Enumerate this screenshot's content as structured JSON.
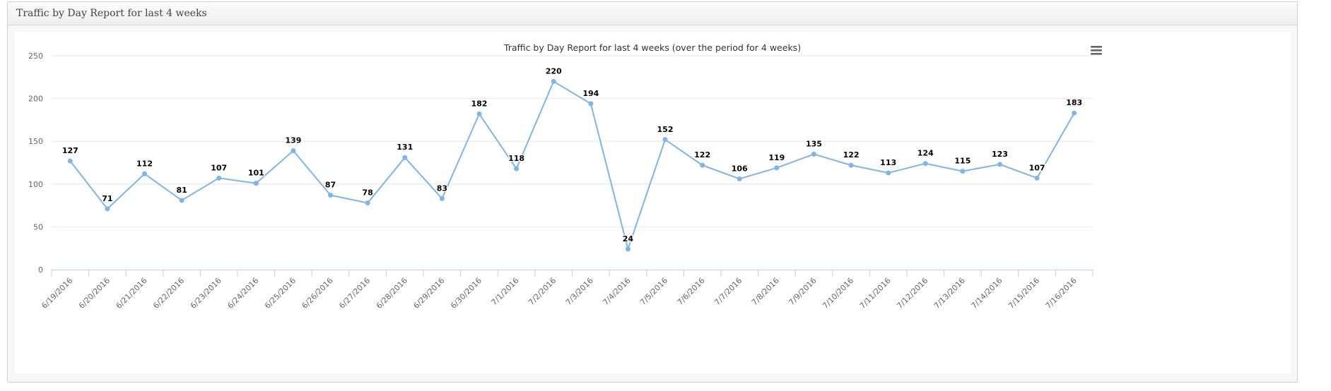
{
  "panel": {
    "title": "Traffic by Day Report for last 4 weeks"
  },
  "menu": {
    "icon": "hamburger-menu-icon"
  },
  "colors": {
    "line": "#7cb5ec",
    "grid": "#e6e6e6",
    "axis": "#c0d0e0",
    "text": "#333333",
    "label": "#000000"
  },
  "chart_data": {
    "type": "line",
    "title": "Traffic by Day Report for last 4 weeks (over the period for 4 weeks)",
    "xlabel": "",
    "ylabel": "",
    "ylim": [
      0,
      250
    ],
    "yticks": [
      0,
      50,
      100,
      150,
      200,
      250
    ],
    "grid": true,
    "legend": false,
    "categories": [
      "6/19/2016",
      "6/20/2016",
      "6/21/2016",
      "6/22/2016",
      "6/23/2016",
      "6/24/2016",
      "6/25/2016",
      "6/26/2016",
      "6/27/2016",
      "6/28/2016",
      "6/29/2016",
      "6/30/2016",
      "7/1/2016",
      "7/2/2016",
      "7/3/2016",
      "7/4/2016",
      "7/5/2016",
      "7/6/2016",
      "7/7/2016",
      "7/8/2016",
      "7/9/2016",
      "7/10/2016",
      "7/11/2016",
      "7/12/2016",
      "7/13/2016",
      "7/14/2016",
      "7/15/2016",
      "7/16/2016"
    ],
    "values": [
      127,
      71,
      112,
      81,
      107,
      101,
      139,
      87,
      78,
      131,
      83,
      182,
      118,
      220,
      194,
      24,
      152,
      122,
      106,
      119,
      135,
      122,
      113,
      124,
      115,
      123,
      107,
      183
    ]
  }
}
